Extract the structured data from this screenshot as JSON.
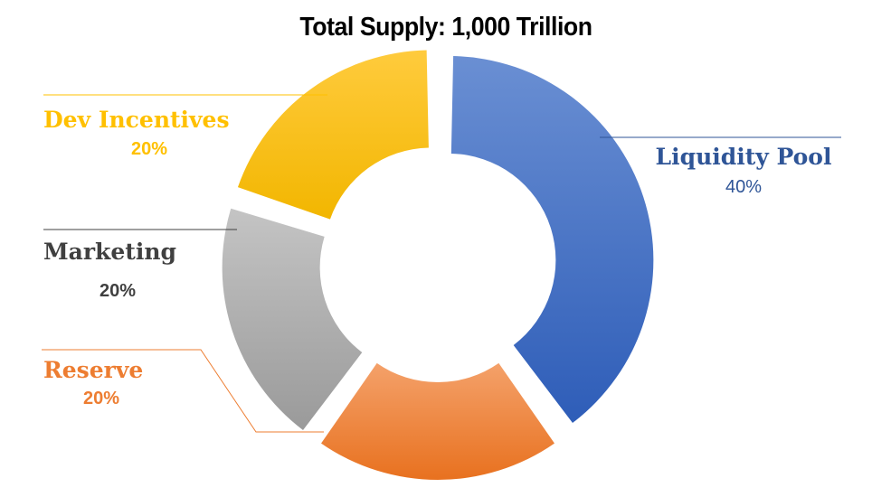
{
  "chart_data": {
    "type": "pie",
    "donut": true,
    "title": "Total Supply: 1,000 Trillion",
    "slices": [
      {
        "name": "Liquidity Pool",
        "value": 40,
        "percent_label": "40%",
        "color": "#4472C4",
        "label_color": "#2F5597"
      },
      {
        "name": "Reserve",
        "value": 20,
        "percent_label": "20%",
        "color": "#ED7D31",
        "label_color": "#ED7D31"
      },
      {
        "name": "Marketing",
        "value": 20,
        "percent_label": "20%",
        "color": "#A5A5A5",
        "label_color": "#404040"
      },
      {
        "name": "Dev Incentives",
        "value": 20,
        "percent_label": "20%",
        "color": "#FFC000",
        "label_color": "#FFC000"
      }
    ]
  }
}
